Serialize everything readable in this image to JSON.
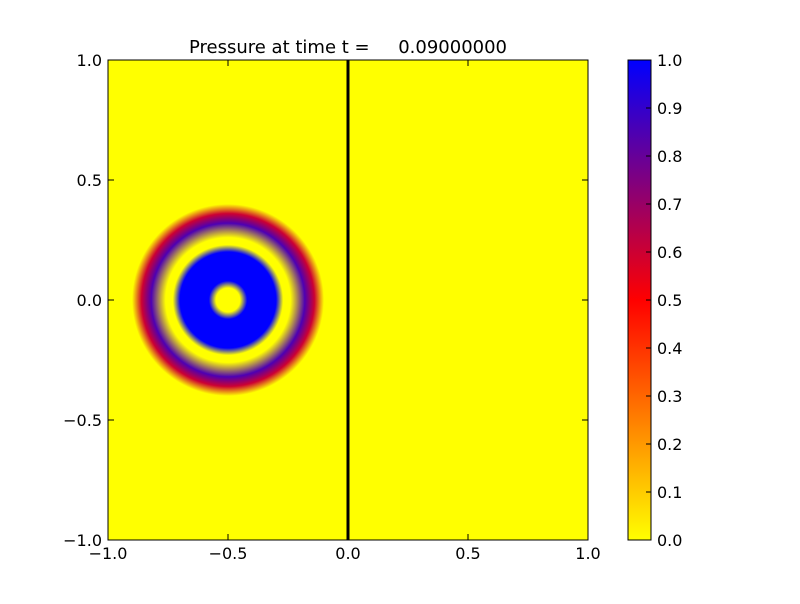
{
  "chart_data": {
    "type": "heatmap",
    "title": "Pressure at time t =     0.09000000",
    "xlabel": "",
    "ylabel": "",
    "xlim": [
      -1.0,
      1.0
    ],
    "ylim": [
      -1.0,
      1.0
    ],
    "x_ticks": [
      -1.0,
      -0.5,
      0.0,
      0.5,
      1.0
    ],
    "x_tick_labels": [
      "−1.0",
      "−0.5",
      "0.0",
      "0.5",
      "1.0"
    ],
    "y_ticks": [
      -1.0,
      -0.5,
      0.0,
      0.5,
      1.0
    ],
    "y_tick_labels": [
      "−1.0",
      "−0.5",
      "0.0",
      "0.5",
      "1.0"
    ],
    "grid": false,
    "background_value": 0.0,
    "pulse_center": [
      -0.5,
      0.0
    ],
    "radial_profile": [
      {
        "r": 0.0,
        "value": 0.0
      },
      {
        "r": 0.05,
        "value": 0.0
      },
      {
        "r": 0.08,
        "value": 1.0
      },
      {
        "r": 0.2,
        "value": 1.0
      },
      {
        "r": 0.23,
        "value": 0.0
      },
      {
        "r": 0.26,
        "value": 0.0
      },
      {
        "r": 0.32,
        "value": 0.85
      },
      {
        "r": 0.36,
        "value": 0.6
      },
      {
        "r": 0.4,
        "value": 0.0
      }
    ],
    "interface_line": {
      "x": 0.0,
      "color": "#000000"
    },
    "colorbar": {
      "vmin": 0.0,
      "vmax": 1.0,
      "ticks": [
        0.0,
        0.1,
        0.2,
        0.3,
        0.4,
        0.5,
        0.6,
        0.7,
        0.8,
        0.9,
        1.0
      ],
      "tick_labels": [
        "0.0",
        "0.1",
        "0.2",
        "0.3",
        "0.4",
        "0.5",
        "0.6",
        "0.7",
        "0.8",
        "0.9",
        "1.0"
      ],
      "colormap_stops": [
        {
          "value": 0.0,
          "color": "#ffff00"
        },
        {
          "value": 0.5,
          "color": "#ff0000"
        },
        {
          "value": 1.0,
          "color": "#0000ff"
        }
      ]
    }
  }
}
